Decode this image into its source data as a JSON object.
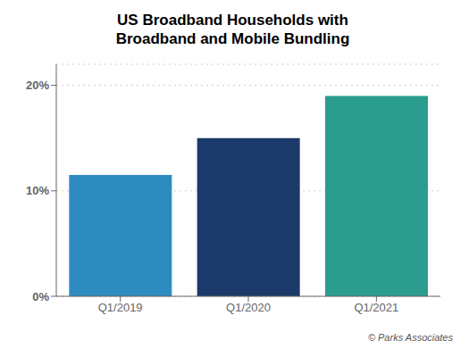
{
  "chart_data": {
    "type": "bar",
    "title": "US Broadband Households with\nBroadband and Mobile Bundling",
    "categories": [
      "Q1/2019",
      "Q1/2020",
      "Q1/2021"
    ],
    "values": [
      11.5,
      15.0,
      19.0
    ],
    "colors": [
      "#2e8bc0",
      "#1b3a6b",
      "#2a9d8f"
    ],
    "ylim": [
      0,
      22
    ],
    "yticks": [
      {
        "value": 0,
        "label": "0%"
      },
      {
        "value": 10,
        "label": "10%"
      },
      {
        "value": 20,
        "label": "20%"
      }
    ],
    "grid": true,
    "annotations": [
      "© Parks Associates"
    ]
  }
}
